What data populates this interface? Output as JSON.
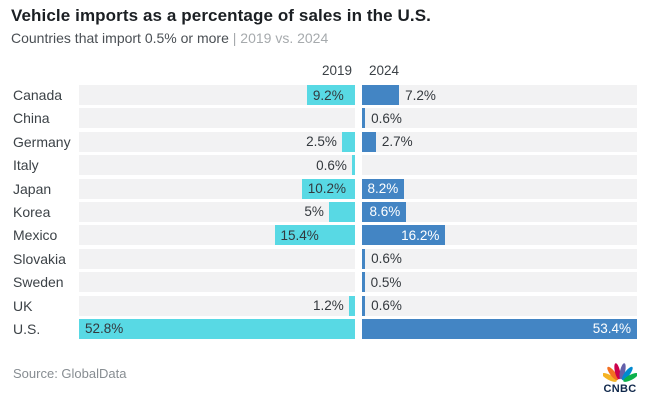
{
  "header": {
    "title": "Vehicle imports as a percentage of sales in the U.S.",
    "subtitle": "Countries that import 0.5% or more",
    "separator": "|",
    "subtitle_comparison": "2019 vs. 2024"
  },
  "chart_data": {
    "type": "bar",
    "variant": "diverging-horizontal-paired",
    "column_headers": [
      "2019",
      "2024"
    ],
    "axis_max_2019": 52.8,
    "axis_max_2024": 53.4,
    "colors": {
      "bar_2019": "#58d9e4",
      "bar_2024": "#4385c4",
      "track": "#f2f2f3",
      "label_dark": "#33383d",
      "label_white": "#ffffff"
    },
    "legend_position": "top-center",
    "grid": false,
    "categories": [
      "Canada",
      "China",
      "Germany",
      "Italy",
      "Japan",
      "Korea",
      "Mexico",
      "Slovakia",
      "Sweden",
      "UK",
      "U.S."
    ],
    "series": [
      {
        "name": "2019",
        "values": [
          9.2,
          null,
          2.5,
          0.6,
          10.2,
          5,
          15.4,
          null,
          null,
          1.2,
          52.8
        ]
      },
      {
        "name": "2024",
        "values": [
          7.2,
          0.6,
          2.7,
          null,
          8.2,
          8.6,
          16.2,
          0.6,
          0.5,
          0.6,
          53.4
        ]
      }
    ],
    "rows": [
      {
        "country": "Canada",
        "v2019": 9.2,
        "l2019": "9.2%",
        "in2019": true,
        "v2024": 7.2,
        "l2024": "7.2%",
        "in2024": false
      },
      {
        "country": "China",
        "v2019": null,
        "l2019": "",
        "in2019": false,
        "v2024": 0.6,
        "l2024": "0.6%",
        "in2024": false
      },
      {
        "country": "Germany",
        "v2019": 2.5,
        "l2019": "2.5%",
        "in2019": false,
        "v2024": 2.7,
        "l2024": "2.7%",
        "in2024": false
      },
      {
        "country": "Italy",
        "v2019": 0.6,
        "l2019": "0.6%",
        "in2019": false,
        "v2024": null,
        "l2024": "",
        "in2024": false
      },
      {
        "country": "Japan",
        "v2019": 10.2,
        "l2019": "10.2%",
        "in2019": true,
        "v2024": 8.2,
        "l2024": "8.2%",
        "in2024": true
      },
      {
        "country": "Korea",
        "v2019": 5,
        "l2019": "5%",
        "in2019": false,
        "v2024": 8.6,
        "l2024": "8.6%",
        "in2024": true
      },
      {
        "country": "Mexico",
        "v2019": 15.4,
        "l2019": "15.4%",
        "in2019": true,
        "v2024": 16.2,
        "l2024": "16.2%",
        "in2024": true
      },
      {
        "country": "Slovakia",
        "v2019": null,
        "l2019": "",
        "in2019": false,
        "v2024": 0.6,
        "l2024": "0.6%",
        "in2024": false
      },
      {
        "country": "Sweden",
        "v2019": null,
        "l2019": "",
        "in2019": false,
        "v2024": 0.5,
        "l2024": "0.5%",
        "in2024": false
      },
      {
        "country": "UK",
        "v2019": 1.2,
        "l2019": "1.2%",
        "in2019": false,
        "v2024": 0.6,
        "l2024": "0.6%",
        "in2024": false
      },
      {
        "country": "U.S.",
        "v2019": 52.8,
        "l2019": "52.8%",
        "in2019": true,
        "v2024": 53.4,
        "l2024": "53.4%",
        "in2024": true
      }
    ]
  },
  "footer": {
    "source": "Source: GlobalData",
    "logo_text": "CNBC",
    "peacock_colors": [
      "#f5b324",
      "#f37021",
      "#cc004c",
      "#6460aa",
      "#0089d0",
      "#0db14b"
    ]
  }
}
